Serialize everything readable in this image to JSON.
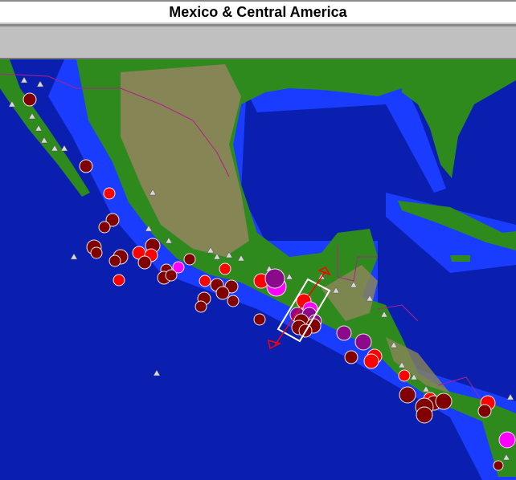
{
  "title": "Mexico & Central America",
  "map": {
    "colors": {
      "deep_ocean": "#0a1fb0",
      "shallow_ocean": "#1a3cff",
      "lowland": "#2f8a1e",
      "highland": "#8a8558",
      "border": "#b0208a",
      "volcano": "#d8d8d8",
      "selection_box": "#ffffff",
      "section_arrow": "#ff0000"
    },
    "marker_colors": {
      "dark_red": "#800000",
      "red": "#ff0000",
      "purple": "#8b0a8b",
      "magenta": "#ff00ff"
    }
  }
}
